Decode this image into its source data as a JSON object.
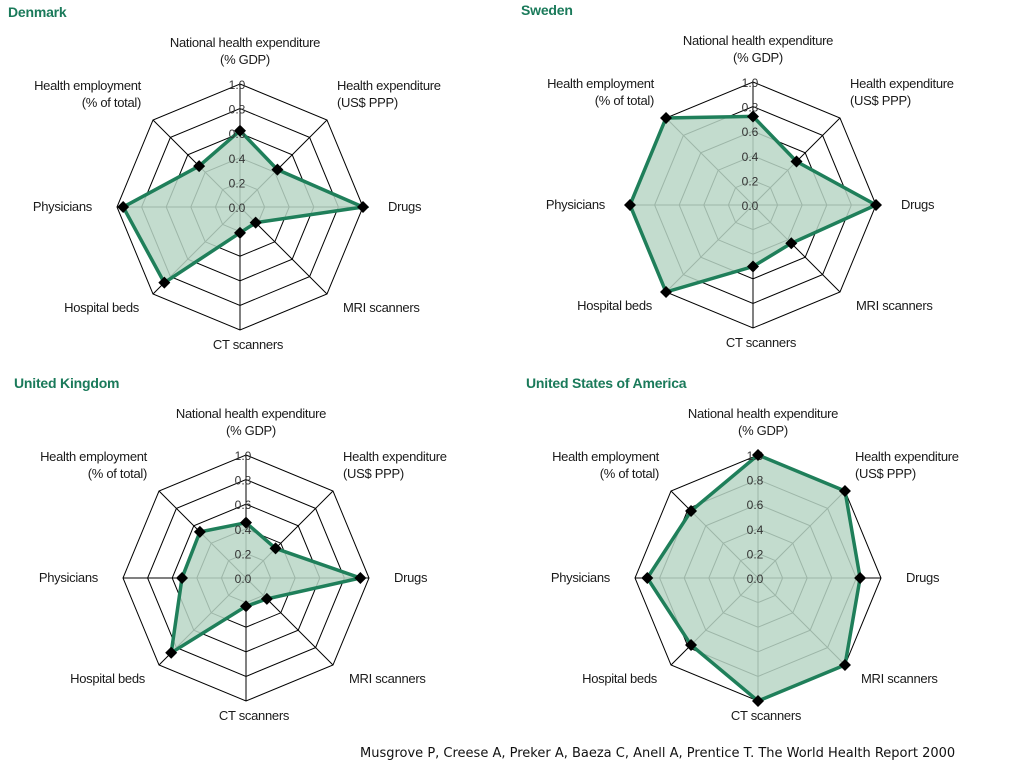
{
  "citation": "Musgrove P, Creese A, Preker A, Baeza C, Anell A, Prentice T. The World Health Report 2000",
  "colors": {
    "accent": "#1a7a5a",
    "series_line": "#1f7f5a",
    "series_fill": "#b9d6c6",
    "grid": "#000000",
    "marker": "#000000"
  },
  "chart_data": [
    {
      "type": "radar",
      "title": "Denmark",
      "axes": [
        [
          "National health expenditure",
          "(% GDP)"
        ],
        [
          "Health expenditure",
          "(US$ PPP)"
        ],
        [
          "Drugs"
        ],
        [
          "MRI scanners"
        ],
        [
          "CT scanners"
        ],
        [
          "Hospital beds"
        ],
        [
          "Physicians"
        ],
        [
          "Health employment",
          "(% of total)"
        ]
      ],
      "ticks": [
        "0.0",
        "0.2",
        "0.4",
        "0.6",
        "0.8",
        "1.0"
      ],
      "range": [
        0,
        1
      ],
      "values": [
        0.62,
        0.43,
        1.0,
        0.18,
        0.21,
        0.87,
        0.95,
        0.47
      ]
    },
    {
      "type": "radar",
      "title": "Sweden",
      "axes": [
        [
          "National health expenditure",
          "(% GDP)"
        ],
        [
          "Health expenditure",
          "(US$ PPP)"
        ],
        [
          "Drugs"
        ],
        [
          "MRI scanners"
        ],
        [
          "CT scanners"
        ],
        [
          "Hospital beds"
        ],
        [
          "Physicians"
        ],
        [
          "Health employment",
          "(% of total)"
        ]
      ],
      "ticks": [
        "0.0",
        "0.2",
        "0.4",
        "0.6",
        "0.8",
        "1.0"
      ],
      "range": [
        0,
        1
      ],
      "values": [
        0.72,
        0.5,
        1.0,
        0.44,
        0.5,
        1.0,
        1.0,
        1.0
      ]
    },
    {
      "type": "radar",
      "title": "United Kingdom",
      "axes": [
        [
          "National health expenditure",
          "(% GDP)"
        ],
        [
          "Health expenditure",
          "(US$ PPP)"
        ],
        [
          "Drugs"
        ],
        [
          "MRI scanners"
        ],
        [
          "CT scanners"
        ],
        [
          "Hospital beds"
        ],
        [
          "Physicians"
        ],
        [
          "Health employment",
          "(% of total)"
        ]
      ],
      "ticks": [
        "0.0",
        "0.2",
        "0.4",
        "0.6",
        "0.8",
        "1.0"
      ],
      "range": [
        0,
        1
      ],
      "values": [
        0.45,
        0.34,
        0.93,
        0.24,
        0.23,
        0.86,
        0.52,
        0.53
      ]
    },
    {
      "type": "radar",
      "title": "United States of America",
      "axes": [
        [
          "National health expenditure",
          "(% GDP)"
        ],
        [
          "Health expenditure",
          "(US$ PPP)"
        ],
        [
          "Drugs"
        ],
        [
          "MRI scanners"
        ],
        [
          "CT scanners"
        ],
        [
          "Hospital beds"
        ],
        [
          "Physicians"
        ],
        [
          "Health employment",
          "(% of total)"
        ]
      ],
      "ticks": [
        "0.0",
        "0.2",
        "0.4",
        "0.6",
        "0.8",
        "1.0"
      ],
      "range": [
        0,
        1
      ],
      "values": [
        1.0,
        1.0,
        0.83,
        1.0,
        1.0,
        0.77,
        0.9,
        0.77
      ]
    }
  ]
}
